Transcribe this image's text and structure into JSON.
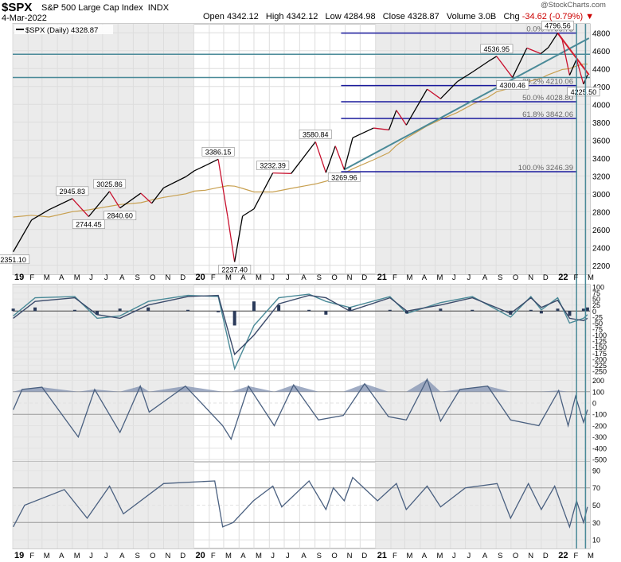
{
  "header": {
    "ticker": "$SPX",
    "name": "S&P 500 Large Cap Index",
    "exchange": "INDX",
    "date": "4-Mar-2022",
    "open_label": "Open",
    "open": "4342.12",
    "high_label": "High",
    "high": "4342.12",
    "low_label": "Low",
    "low": "4284.98",
    "close_label": "Close",
    "close": "4328.87",
    "volume_label": "Volume",
    "volume": "3.0B",
    "chg_label": "Chg",
    "chg": "-34.62 (-0.79%)",
    "watermark": "@StockCharts.com",
    "legend": "$SPX (Daily) 4328.87"
  },
  "colors": {
    "price_line": "#000000",
    "price_down": "#c8102e",
    "ma": "#c8a050",
    "fib": "#1a1a9c",
    "trend_teal": "#4a8a98",
    "trend_red": "#d42030",
    "hline": "#4a8a98",
    "osc": "#4a6080",
    "osc_fill": "#8090b0",
    "panel_shade": "#ebebeb"
  },
  "chart_data": [
    {
      "panel": "price",
      "type": "line",
      "x_labels": [
        "19",
        "F",
        "M",
        "A",
        "M",
        "J",
        "J",
        "A",
        "S",
        "O",
        "N",
        "D",
        "20",
        "F",
        "M",
        "A",
        "M",
        "J",
        "J",
        "A",
        "S",
        "O",
        "N",
        "D",
        "21",
        "F",
        "M",
        "A",
        "M",
        "J",
        "J",
        "A",
        "S",
        "O",
        "N",
        "D",
        "22",
        "F",
        "M"
      ],
      "x": [
        "2019-01-02",
        "2019-02-08",
        "2019-03-15",
        "2019-05-01",
        "2019-06-03",
        "2019-07-15",
        "2019-08-05",
        "2019-09-16",
        "2019-10-08",
        "2019-11-01",
        "2019-12-16",
        "2020-01-02",
        "2020-01-24",
        "2020-02-19",
        "2020-03-09",
        "2020-03-23",
        "2020-04-08",
        "2020-05-01",
        "2020-06-08",
        "2020-07-15",
        "2020-09-02",
        "2020-09-23",
        "2020-10-12",
        "2020-10-30",
        "2020-11-16",
        "2020-12-28",
        "2021-01-28",
        "2021-02-12",
        "2021-03-04",
        "2021-04-15",
        "2021-05-12",
        "2021-06-15",
        "2021-07-15",
        "2021-08-16",
        "2021-09-02",
        "2021-10-04",
        "2021-11-02",
        "2021-11-30",
        "2021-12-15",
        "2022-01-03",
        "2022-01-12",
        "2022-01-27",
        "2022-02-10",
        "2022-02-24",
        "2022-03-04"
      ],
      "close": [
        2351.1,
        2707,
        2822,
        2945.83,
        2744.45,
        3025.86,
        2840.6,
        3006,
        2893,
        3066,
        3191,
        3257,
        3315,
        3386.15,
        2746,
        2237.4,
        2750,
        2831,
        3232.39,
        3226,
        3580.84,
        3236,
        3534,
        3269.96,
        3626,
        3735,
        3714,
        3934,
        3768,
        4170,
        4063,
        4255,
        4360,
        4479,
        4536.95,
        4300.46,
        4630,
        4567,
        4634,
        4796.56,
        4726,
        4326,
        4504,
        4225.5,
        4328.87
      ],
      "annotations": [
        "2351.10",
        "2945.83",
        "2744.45",
        "3025.86",
        "2840.60",
        "3386.15",
        "2237.40",
        "3232.39",
        "3580.84",
        "3269.96",
        "4536.95",
        "4300.46",
        "4796.56",
        "4225.50"
      ],
      "moving_average_200": [
        2740,
        2760,
        2740,
        2800,
        2820,
        2860,
        2880,
        2900,
        2930,
        2960,
        3000,
        3030,
        3040,
        3070,
        3090,
        3085,
        3060,
        3020,
        3020,
        3060,
        3110,
        3140,
        3180,
        3230,
        3280,
        3380,
        3460,
        3540,
        3620,
        3760,
        3830,
        3910,
        4000,
        4080,
        4140,
        4190,
        4250,
        4290,
        4330,
        4370,
        4390,
        4400,
        4430,
        4450,
        4450
      ],
      "fibonacci": [
        {
          "label": "0.0% 4796.73",
          "value": 4796.73
        },
        {
          "label": "38.2% 4210.06",
          "value": 4210.06
        },
        {
          "label": "50.0% 4028.80",
          "value": 4028.8
        },
        {
          "label": "61.8% 3842.06",
          "value": 3842.06
        },
        {
          "label": "100.0% 3246.39",
          "value": 3246.39
        }
      ],
      "horizontal_lines": [
        4560,
        4300
      ],
      "trendlines": [
        {
          "from": [
            "2020-10-30",
            3269.96
          ],
          "to": [
            "2022-03-07",
            4740
          ]
        },
        {
          "from": [
            "2022-01-03",
            4796.56
          ],
          "to": [
            "2022-03-07",
            4330
          ]
        }
      ],
      "vertical_markers": [
        "2022-02-10",
        "2022-02-28"
      ],
      "y_ticks": [
        2200,
        2400,
        2600,
        2800,
        3000,
        3200,
        3400,
        3600,
        3800,
        4000,
        4200,
        4400,
        4600,
        4800
      ],
      "ylim": [
        2100,
        4900
      ],
      "legend_position": "top-left",
      "grid": true
    },
    {
      "panel": "oscillator-1",
      "type": "line",
      "y_ticks": [
        100,
        75,
        50,
        25,
        0,
        -25,
        -50,
        -75,
        -100,
        -125,
        -150,
        -175,
        -200,
        -225,
        -250
      ],
      "ylim": [
        -260,
        110
      ],
      "x": [
        "2019-01-02",
        "2019-02-15",
        "2019-05-06",
        "2019-06-20",
        "2019-08-05",
        "2019-10-01",
        "2019-12-20",
        "2020-02-19",
        "2020-03-23",
        "2020-05-01",
        "2020-06-20",
        "2020-08-20",
        "2020-09-23",
        "2020-11-10",
        "2021-01-30",
        "2021-03-05",
        "2021-05-12",
        "2021-07-15",
        "2021-09-30",
        "2021-11-10",
        "2021-12-01",
        "2022-01-03",
        "2022-01-27",
        "2022-02-24",
        "2022-03-04"
      ],
      "series": [
        {
          "values": [
            -20,
            55,
            60,
            -30,
            -20,
            40,
            65,
            60,
            -240,
            -60,
            55,
            70,
            40,
            15,
            60,
            -10,
            35,
            60,
            -25,
            60,
            5,
            55,
            -50,
            -30,
            -15
          ]
        },
        {
          "values": [
            -30,
            40,
            55,
            -15,
            -30,
            25,
            60,
            65,
            -180,
            -100,
            30,
            65,
            55,
            0,
            55,
            0,
            25,
            55,
            -10,
            55,
            15,
            45,
            -30,
            -40,
            -30
          ]
        }
      ]
    },
    {
      "panel": "oscillator-2",
      "type": "area",
      "y_ticks": [
        200,
        100,
        0,
        -100,
        -200,
        -300,
        -400,
        -500
      ],
      "ylim": [
        -520,
        260
      ],
      "x": [
        "2019-01-02",
        "2019-01-20",
        "2019-03-01",
        "2019-05-13",
        "2019-06-15",
        "2019-08-05",
        "2019-09-15",
        "2019-10-03",
        "2019-12-15",
        "2020-02-28",
        "2020-03-16",
        "2020-04-20",
        "2020-06-11",
        "2020-07-20",
        "2020-09-08",
        "2020-10-28",
        "2020-12-10",
        "2021-01-27",
        "2021-03-04",
        "2021-04-15",
        "2021-05-12",
        "2021-06-20",
        "2021-08-15",
        "2021-09-30",
        "2021-11-26",
        "2022-01-05",
        "2022-01-24",
        "2022-02-08",
        "2022-02-24",
        "2022-03-04"
      ],
      "values": [
        -60,
        120,
        140,
        -300,
        120,
        -260,
        150,
        -80,
        150,
        -200,
        -320,
        150,
        -200,
        160,
        -150,
        -110,
        170,
        -120,
        -150,
        210,
        -160,
        120,
        150,
        -150,
        -200,
        110,
        -200,
        60,
        -170,
        -60
      ]
    },
    {
      "panel": "oscillator-3",
      "type": "line",
      "y_ticks": [
        90,
        70,
        50,
        30,
        10
      ],
      "ylim": [
        0,
        100
      ],
      "x": [
        "2019-01-02",
        "2019-01-25",
        "2019-04-15",
        "2019-05-31",
        "2019-07-15",
        "2019-08-12",
        "2019-11-01",
        "2020-02-12",
        "2020-02-28",
        "2020-03-20",
        "2020-04-30",
        "2020-06-08",
        "2020-06-26",
        "2020-08-20",
        "2020-09-23",
        "2020-10-08",
        "2020-10-30",
        "2020-11-16",
        "2021-01-05",
        "2021-02-12",
        "2021-03-04",
        "2021-04-15",
        "2021-05-12",
        "2021-07-01",
        "2021-09-03",
        "2021-09-30",
        "2021-11-05",
        "2021-12-01",
        "2021-12-28",
        "2022-01-27",
        "2022-02-10",
        "2022-02-24",
        "2022-03-04"
      ],
      "values": [
        25,
        50,
        68,
        35,
        72,
        40,
        75,
        78,
        25,
        30,
        55,
        72,
        48,
        78,
        45,
        70,
        55,
        82,
        55,
        75,
        45,
        72,
        48,
        70,
        75,
        35,
        75,
        45,
        72,
        25,
        55,
        30,
        48
      ]
    }
  ]
}
